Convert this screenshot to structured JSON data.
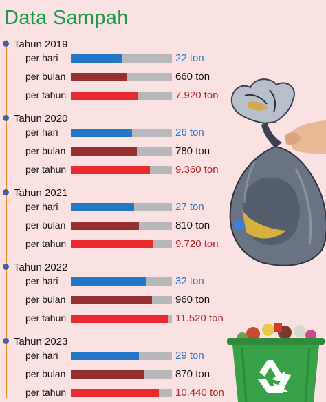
{
  "title": "Data Sampah",
  "unit": "ton",
  "colors": {
    "per_hari": "#2278c6",
    "per_bulan": "#973131",
    "per_tahun": "#ea2a2f",
    "track": "#b8b8bc",
    "title": "#1c9a4a",
    "timeline": "#ef8a1e"
  },
  "chart_data": {
    "type": "bar",
    "orientation": "horizontal",
    "title": "Data Sampah",
    "row_labels": [
      "per hari",
      "per bulan",
      "per tahun"
    ],
    "groups": [
      {
        "year": "Tahun 2019",
        "rows": [
          {
            "label": "per hari",
            "value": 22,
            "text": "22 ton"
          },
          {
            "label": "per bulan",
            "value": 660,
            "text": "660 ton"
          },
          {
            "label": "per tahun",
            "value": 7920,
            "text": "7.920 ton"
          }
        ]
      },
      {
        "year": "Tahun 2020",
        "rows": [
          {
            "label": "per hari",
            "value": 26,
            "text": "26 ton"
          },
          {
            "label": "per bulan",
            "value": 780,
            "text": "780 ton"
          },
          {
            "label": "per tahun",
            "value": 9360,
            "text": "9.360 ton"
          }
        ]
      },
      {
        "year": "Tahun 2021",
        "rows": [
          {
            "label": "per hari",
            "value": 27,
            "text": "27 ton"
          },
          {
            "label": "per bulan",
            "value": 810,
            "text": "810 ton"
          },
          {
            "label": "per tahun",
            "value": 9720,
            "text": "9.720 ton"
          }
        ]
      },
      {
        "year": "Tahun 2022",
        "rows": [
          {
            "label": "per hari",
            "value": 32,
            "text": "32 ton"
          },
          {
            "label": "per bulan",
            "value": 960,
            "text": "960 ton"
          },
          {
            "label": "per tahun",
            "value": 11520,
            "text": "11.520 ton"
          }
        ]
      },
      {
        "year": "Tahun 2023",
        "rows": [
          {
            "label": "per hari",
            "value": 29,
            "text": "29 ton"
          },
          {
            "label": "per bulan",
            "value": 870,
            "text": "870 ton"
          },
          {
            "label": "per tahun",
            "value": 10440,
            "text": "10.440 ton"
          }
        ]
      }
    ]
  },
  "illustrations": {
    "bag_icon": "garbage-bag-in-hand-icon",
    "bin_icon": "green-recycling-bin-icon"
  }
}
